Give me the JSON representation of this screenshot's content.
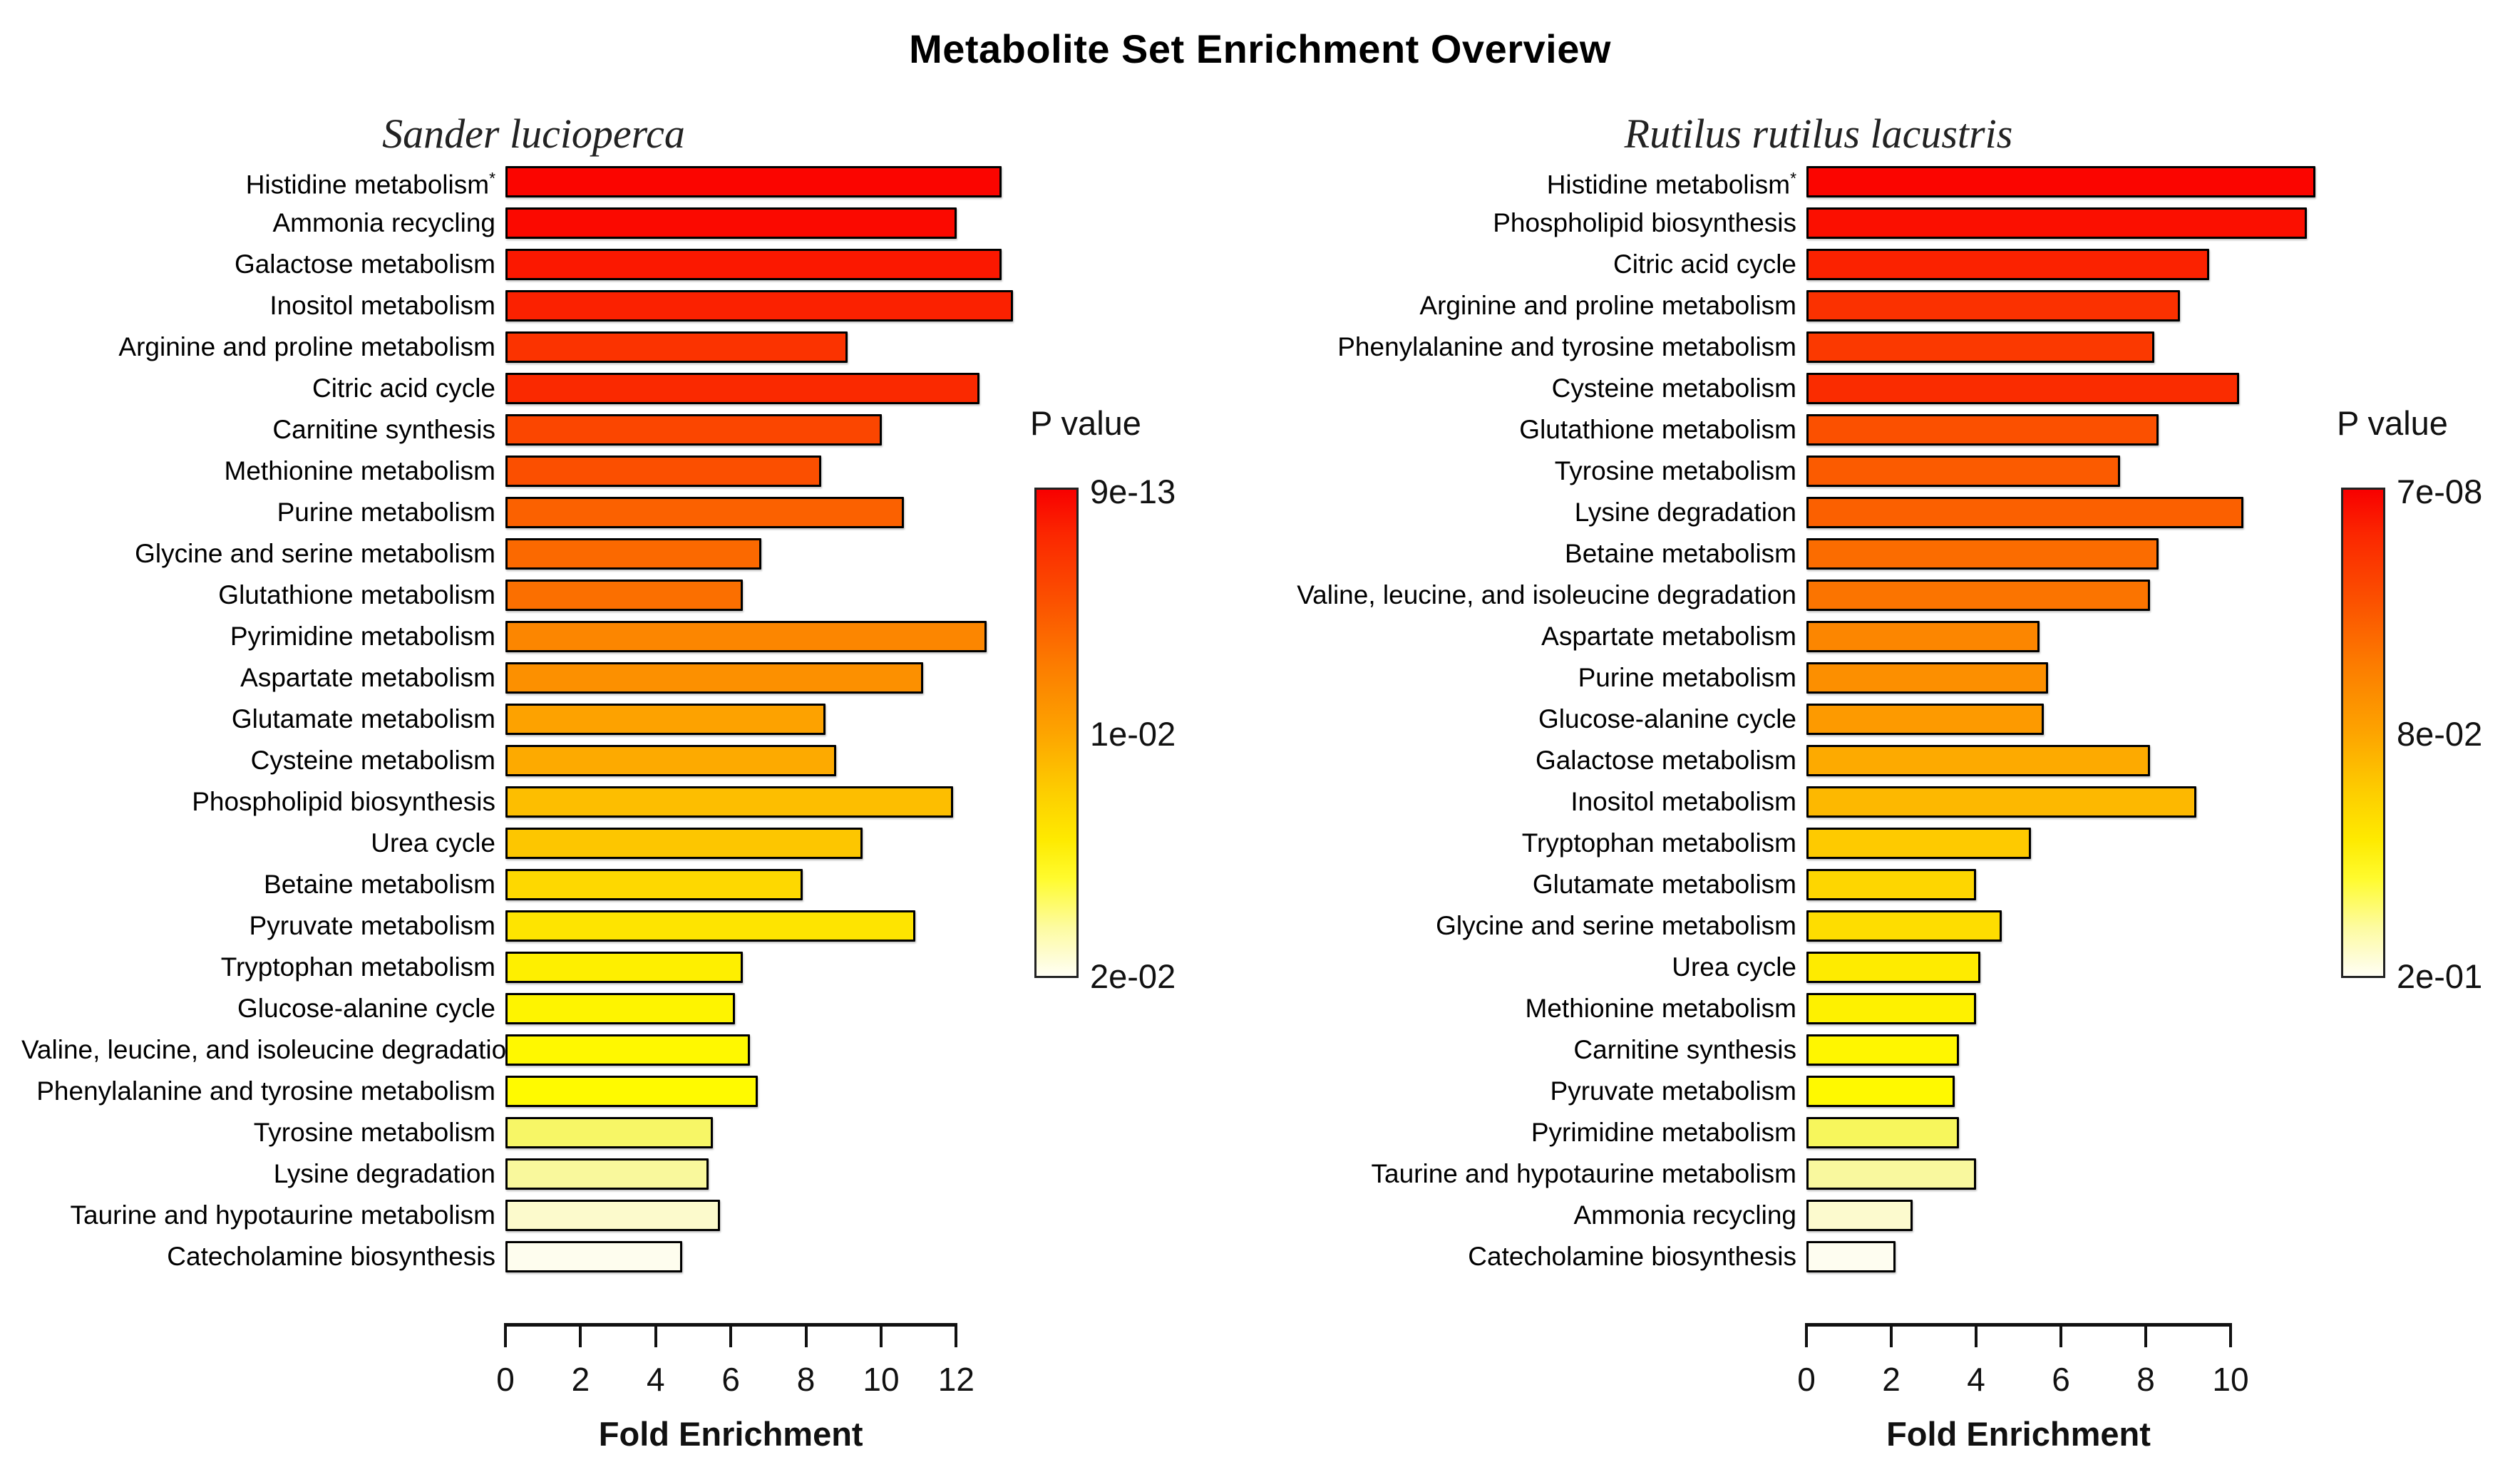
{
  "title": "Metabolite Set Enrichment Overview",
  "chart_data": [
    {
      "type": "bar",
      "orientation": "horizontal",
      "subtitle": "Sander lucioperca",
      "xlabel": "Fold Enrichment",
      "x_ticks": [
        "0",
        "2",
        "4",
        "6",
        "8",
        "10",
        "12"
      ],
      "xlim": [
        0,
        14.3
      ],
      "grid": false,
      "legend": {
        "title": "P value",
        "position": "right",
        "labels": [
          "9e-13",
          "1e-02",
          "2e-02"
        ],
        "top_color": "#F80000",
        "bottom_color": "#FFFEF4"
      },
      "rows": [
        {
          "label": "Histidine metabolism",
          "mark": "*",
          "value": 13.1,
          "color": "#FB0500"
        },
        {
          "label": "Ammonia recycling",
          "value": 11.9,
          "color": "#FB0900"
        },
        {
          "label": "Galactose metabolism",
          "value": 13.1,
          "color": "#FB1800"
        },
        {
          "label": "Inositol metabolism",
          "value": 13.4,
          "color": "#FB2100"
        },
        {
          "label": "Arginine and proline metabolism",
          "value": 9.0,
          "color": "#FB3300"
        },
        {
          "label": "Citric acid cycle",
          "value": 12.5,
          "color": "#FA2900"
        },
        {
          "label": "Carnitine synthesis",
          "value": 9.9,
          "color": "#FB4600"
        },
        {
          "label": "Methionine metabolism",
          "value": 8.3,
          "color": "#FB4F00"
        },
        {
          "label": "Purine metabolism",
          "value": 10.5,
          "color": "#FB6100"
        },
        {
          "label": "Glycine and serine metabolism",
          "value": 6.7,
          "color": "#FB6900"
        },
        {
          "label": "Glutathione metabolism",
          "value": 6.2,
          "color": "#FB6F00"
        },
        {
          "label": "Pyrimidine metabolism",
          "value": 12.7,
          "color": "#FC8600"
        },
        {
          "label": "Aspartate metabolism",
          "value": 11.0,
          "color": "#FC9000"
        },
        {
          "label": "Glutamate metabolism",
          "value": 8.4,
          "color": "#FDA200"
        },
        {
          "label": "Cysteine metabolism",
          "value": 8.7,
          "color": "#FDAA00"
        },
        {
          "label": "Phospholipid biosynthesis",
          "value": 11.8,
          "color": "#FDBE00"
        },
        {
          "label": "Urea cycle",
          "value": 9.4,
          "color": "#FDC600"
        },
        {
          "label": "Betaine metabolism",
          "value": 7.8,
          "color": "#FED800"
        },
        {
          "label": "Pyruvate metabolism",
          "value": 10.8,
          "color": "#FEE400"
        },
        {
          "label": "Tryptophan metabolism",
          "value": 6.2,
          "color": "#FEEF00"
        },
        {
          "label": "Glucose-alanine cycle",
          "value": 6.0,
          "color": "#FEF400"
        },
        {
          "label": "Valine, leucine, and isoleucine degradation",
          "value": 6.4,
          "color": "#FFF800"
        },
        {
          "label": "Phenylalanine and tyrosine metabolism",
          "value": 6.6,
          "color": "#FFFA00"
        },
        {
          "label": "Tyrosine metabolism",
          "value": 5.4,
          "color": "#F7F666"
        },
        {
          "label": "Lysine degradation",
          "value": 5.3,
          "color": "#F9F89C"
        },
        {
          "label": "Taurine and hypotaurine metabolism",
          "value": 5.6,
          "color": "#FCFACC"
        },
        {
          "label": "Catecholamine biosynthesis",
          "value": 4.6,
          "color": "#FEFDEE"
        }
      ]
    },
    {
      "type": "bar",
      "orientation": "horizontal",
      "subtitle": "Rutilus rutilus lacustris",
      "xlabel": "Fold Enrichment",
      "x_ticks": [
        "0",
        "2",
        "4",
        "6",
        "8",
        "10"
      ],
      "xlim": [
        0,
        12.7
      ],
      "grid": false,
      "legend": {
        "title": "P value",
        "position": "right",
        "labels": [
          "7e-08",
          "8e-02",
          "2e-01"
        ],
        "top_color": "#F80000",
        "bottom_color": "#FFFEF4"
      },
      "rows": [
        {
          "label": "Histidine metabolism",
          "mark": "*",
          "value": 11.9,
          "color": "#FB0500"
        },
        {
          "label": "Phospholipid biosynthesis",
          "value": 11.7,
          "color": "#FB0F00"
        },
        {
          "label": "Citric acid cycle",
          "value": 9.4,
          "color": "#FB2200"
        },
        {
          "label": "Arginine and proline metabolism",
          "value": 8.7,
          "color": "#FB3100"
        },
        {
          "label": "Phenylalanine and tyrosine metabolism",
          "value": 8.1,
          "color": "#FB3900"
        },
        {
          "label": "Cysteine metabolism",
          "value": 10.1,
          "color": "#FA2C00"
        },
        {
          "label": "Glutathione metabolism",
          "value": 8.2,
          "color": "#FB5000"
        },
        {
          "label": "Tyrosine metabolism",
          "value": 7.3,
          "color": "#FB5B00"
        },
        {
          "label": "Lysine degradation",
          "value": 10.2,
          "color": "#FB6000"
        },
        {
          "label": "Betaine metabolism",
          "value": 8.2,
          "color": "#FB6C00"
        },
        {
          "label": "Valine, leucine, and isoleucine degradation",
          "value": 8.0,
          "color": "#FB7400"
        },
        {
          "label": "Aspartate metabolism",
          "value": 5.4,
          "color": "#FC8600"
        },
        {
          "label": "Purine metabolism",
          "value": 5.6,
          "color": "#FC8F00"
        },
        {
          "label": "Glucose-alanine cycle",
          "value": 5.5,
          "color": "#FD9A00"
        },
        {
          "label": "Galactose metabolism",
          "value": 8.0,
          "color": "#FDAA00"
        },
        {
          "label": "Inositol metabolism",
          "value": 9.1,
          "color": "#FDB800"
        },
        {
          "label": "Tryptophan metabolism",
          "value": 5.2,
          "color": "#FECA00"
        },
        {
          "label": "Glutamate metabolism",
          "value": 3.9,
          "color": "#FED600"
        },
        {
          "label": "Glycine and serine metabolism",
          "value": 4.5,
          "color": "#FEDD00"
        },
        {
          "label": "Urea cycle",
          "value": 4.0,
          "color": "#FEEB00"
        },
        {
          "label": "Methionine metabolism",
          "value": 3.9,
          "color": "#FEF100"
        },
        {
          "label": "Carnitine synthesis",
          "value": 3.5,
          "color": "#FFF600"
        },
        {
          "label": "Pyruvate metabolism",
          "value": 3.4,
          "color": "#FFF900"
        },
        {
          "label": "Pyrimidine metabolism",
          "value": 3.5,
          "color": "#F7F65C"
        },
        {
          "label": "Taurine and hypotaurine metabolism",
          "value": 3.9,
          "color": "#F9F89E"
        },
        {
          "label": "Ammonia recycling",
          "value": 2.4,
          "color": "#FCFACE"
        },
        {
          "label": "Catecholamine biosynthesis",
          "value": 2.0,
          "color": "#FEFDF0"
        }
      ]
    }
  ]
}
